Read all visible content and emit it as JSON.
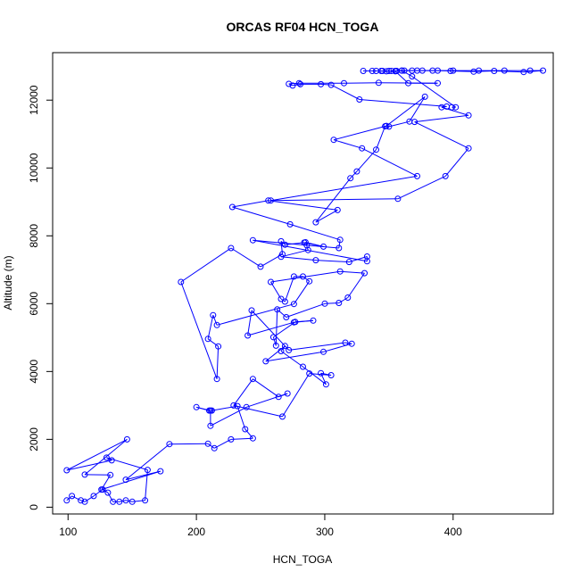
{
  "chart_data": {
    "type": "line",
    "title": "ORCAS RF04 HCN_TOGA",
    "xlabel": "HCN_TOGA",
    "ylabel": "Altitude (m)",
    "xlim": [
      88,
      478
    ],
    "ylim": [
      -200,
      13400
    ],
    "x_ticks": [
      "100",
      "200",
      "300",
      "400"
    ],
    "y_ticks": [
      "0",
      "2000",
      "4000",
      "6000",
      "8000",
      "10000",
      "12000"
    ],
    "marker": "open-circle",
    "grid": false,
    "legend": "none",
    "colors": {
      "series": "#0000ff",
      "axes": "#000000",
      "background": "#ffffff"
    },
    "series": [
      {
        "points": [
          [
            99,
            200
          ],
          [
            103,
            330
          ],
          [
            110,
            200
          ],
          [
            113,
            160
          ],
          [
            120,
            330
          ],
          [
            127,
            520
          ],
          [
            131,
            430
          ],
          [
            135,
            160
          ],
          [
            140,
            160
          ],
          [
            145,
            200
          ],
          [
            150,
            160
          ],
          [
            160,
            200
          ],
          [
            162,
            1100
          ],
          [
            130,
            1460
          ],
          [
            134,
            1380
          ],
          [
            99,
            1090
          ],
          [
            146,
            2000
          ],
          [
            113,
            960
          ],
          [
            133,
            950
          ],
          [
            126,
            520
          ],
          [
            172,
            1060
          ],
          [
            145,
            810
          ],
          [
            179,
            1860
          ],
          [
            209,
            1870
          ],
          [
            214,
            1740
          ],
          [
            227,
            2000
          ],
          [
            244,
            2030
          ],
          [
            238,
            2300
          ],
          [
            232,
            2980
          ],
          [
            212,
            2850
          ],
          [
            210,
            2850
          ],
          [
            200,
            2950
          ],
          [
            211,
            2850
          ],
          [
            211,
            2400
          ],
          [
            239,
            2950
          ],
          [
            271,
            3350
          ],
          [
            264,
            3250
          ],
          [
            244,
            3780
          ],
          [
            229,
            3000
          ],
          [
            267,
            2670
          ],
          [
            288,
            3940
          ],
          [
            305,
            3890
          ],
          [
            297,
            3950
          ],
          [
            301,
            3620
          ],
          [
            283,
            4140
          ],
          [
            266,
            4600
          ],
          [
            269,
            4750
          ],
          [
            254,
            4300
          ],
          [
            299,
            4580
          ],
          [
            321,
            4820
          ],
          [
            316,
            4850
          ],
          [
            272,
            4630
          ],
          [
            243,
            5800
          ],
          [
            240,
            5060
          ],
          [
            276,
            5450
          ],
          [
            291,
            5500
          ],
          [
            277,
            5460
          ],
          [
            260,
            5010
          ],
          [
            262,
            4760
          ],
          [
            263,
            5830
          ],
          [
            270,
            5600
          ],
          [
            300,
            6000
          ],
          [
            311,
            6020
          ],
          [
            318,
            6180
          ],
          [
            331,
            6900
          ],
          [
            312,
            6950
          ],
          [
            258,
            6640
          ],
          [
            266,
            6140
          ],
          [
            269,
            6060
          ],
          [
            276,
            6800
          ],
          [
            283,
            6800
          ],
          [
            288,
            6660
          ],
          [
            276,
            5990
          ],
          [
            216,
            5370
          ],
          [
            213,
            5660
          ],
          [
            209,
            4960
          ],
          [
            217,
            4740
          ],
          [
            216,
            3780
          ],
          [
            188,
            6640
          ],
          [
            227,
            7640
          ],
          [
            250,
            7090
          ],
          [
            267,
            7460
          ],
          [
            266,
            7840
          ],
          [
            269,
            7740
          ],
          [
            284,
            7800
          ],
          [
            299,
            7680
          ],
          [
            285,
            7810
          ],
          [
            287,
            7580
          ],
          [
            266,
            7380
          ],
          [
            293,
            7280
          ],
          [
            319,
            7230
          ],
          [
            333,
            7390
          ],
          [
            333,
            7250
          ],
          [
            244,
            7870
          ],
          [
            286,
            7720
          ],
          [
            311,
            7640
          ],
          [
            312,
            7880
          ],
          [
            273,
            8340
          ],
          [
            228,
            8850
          ],
          [
            256,
            9040
          ],
          [
            310,
            8760
          ],
          [
            293,
            8400
          ],
          [
            320,
            9700
          ],
          [
            325,
            9900
          ],
          [
            340,
            10540
          ],
          [
            347,
            11230
          ],
          [
            350,
            11220
          ],
          [
            366,
            11370
          ],
          [
            378,
            12100
          ],
          [
            348,
            11240
          ],
          [
            307,
            10830
          ],
          [
            329,
            10580
          ],
          [
            372,
            9760
          ],
          [
            258,
            9040
          ],
          [
            357,
            9090
          ],
          [
            394,
            9760
          ],
          [
            412,
            10580
          ],
          [
            370,
            11360
          ],
          [
            412,
            11550
          ],
          [
            391,
            11790
          ],
          [
            395,
            11810
          ],
          [
            327,
            12020
          ],
          [
            305,
            12450
          ],
          [
            297,
            12470
          ],
          [
            281,
            12470
          ],
          [
            275,
            12430
          ],
          [
            272,
            12480
          ],
          [
            280,
            12500
          ],
          [
            315,
            12500
          ],
          [
            342,
            12510
          ],
          [
            388,
            12500
          ],
          [
            365,
            12500
          ],
          [
            355,
            12850
          ],
          [
            348,
            12850
          ],
          [
            340,
            12860
          ],
          [
            330,
            12860
          ],
          [
            345,
            12860
          ],
          [
            352,
            12860
          ],
          [
            360,
            12870
          ],
          [
            372,
            12870
          ],
          [
            384,
            12870
          ],
          [
            400,
            12870
          ],
          [
            420,
            12870
          ],
          [
            440,
            12870
          ],
          [
            460,
            12870
          ],
          [
            470,
            12870
          ],
          [
            455,
            12830
          ],
          [
            432,
            12860
          ],
          [
            416,
            12840
          ],
          [
            398,
            12860
          ],
          [
            388,
            12870
          ],
          [
            376,
            12870
          ],
          [
            368,
            12870
          ],
          [
            362,
            12870
          ],
          [
            356,
            12860
          ],
          [
            350,
            12860
          ],
          [
            344,
            12860
          ],
          [
            337,
            12860
          ],
          [
            355,
            12860
          ],
          [
            360,
            12870
          ],
          [
            368,
            12700
          ],
          [
            402,
            11790
          ],
          [
            399,
            11790
          ]
        ]
      }
    ]
  }
}
